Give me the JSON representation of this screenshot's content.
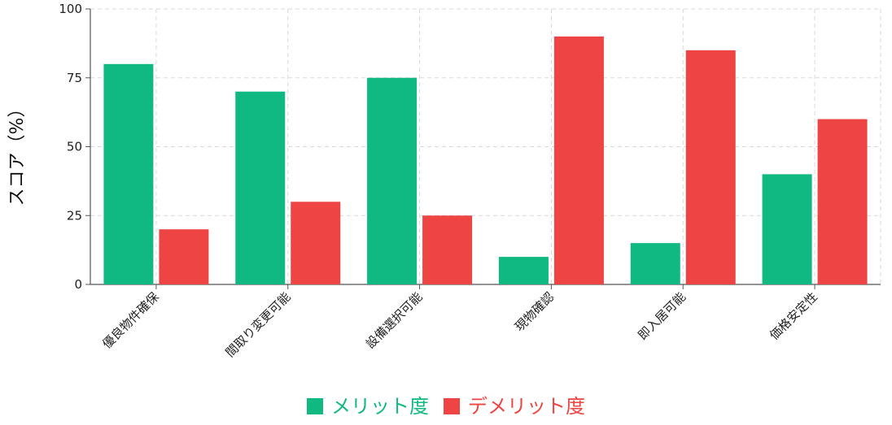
{
  "chart_data": {
    "type": "bar",
    "categories": [
      "優良物件確保",
      "間取り変更可能",
      "設備選択可能",
      "現物確認",
      "即入居可能",
      "価格安定性"
    ],
    "series": [
      {
        "name": "メリット度",
        "color": "#10b981",
        "values": [
          80,
          70,
          75,
          10,
          15,
          40
        ]
      },
      {
        "name": "デメリット度",
        "color": "#ef4444",
        "values": [
          20,
          30,
          25,
          90,
          85,
          60
        ]
      }
    ],
    "title": "",
    "xlabel": "",
    "ylabel": "スコア（%）",
    "ylim": [
      0,
      100
    ],
    "yticks": [
      0,
      25,
      50,
      75,
      100
    ],
    "grid": true,
    "legend_position": "bottom-center"
  }
}
